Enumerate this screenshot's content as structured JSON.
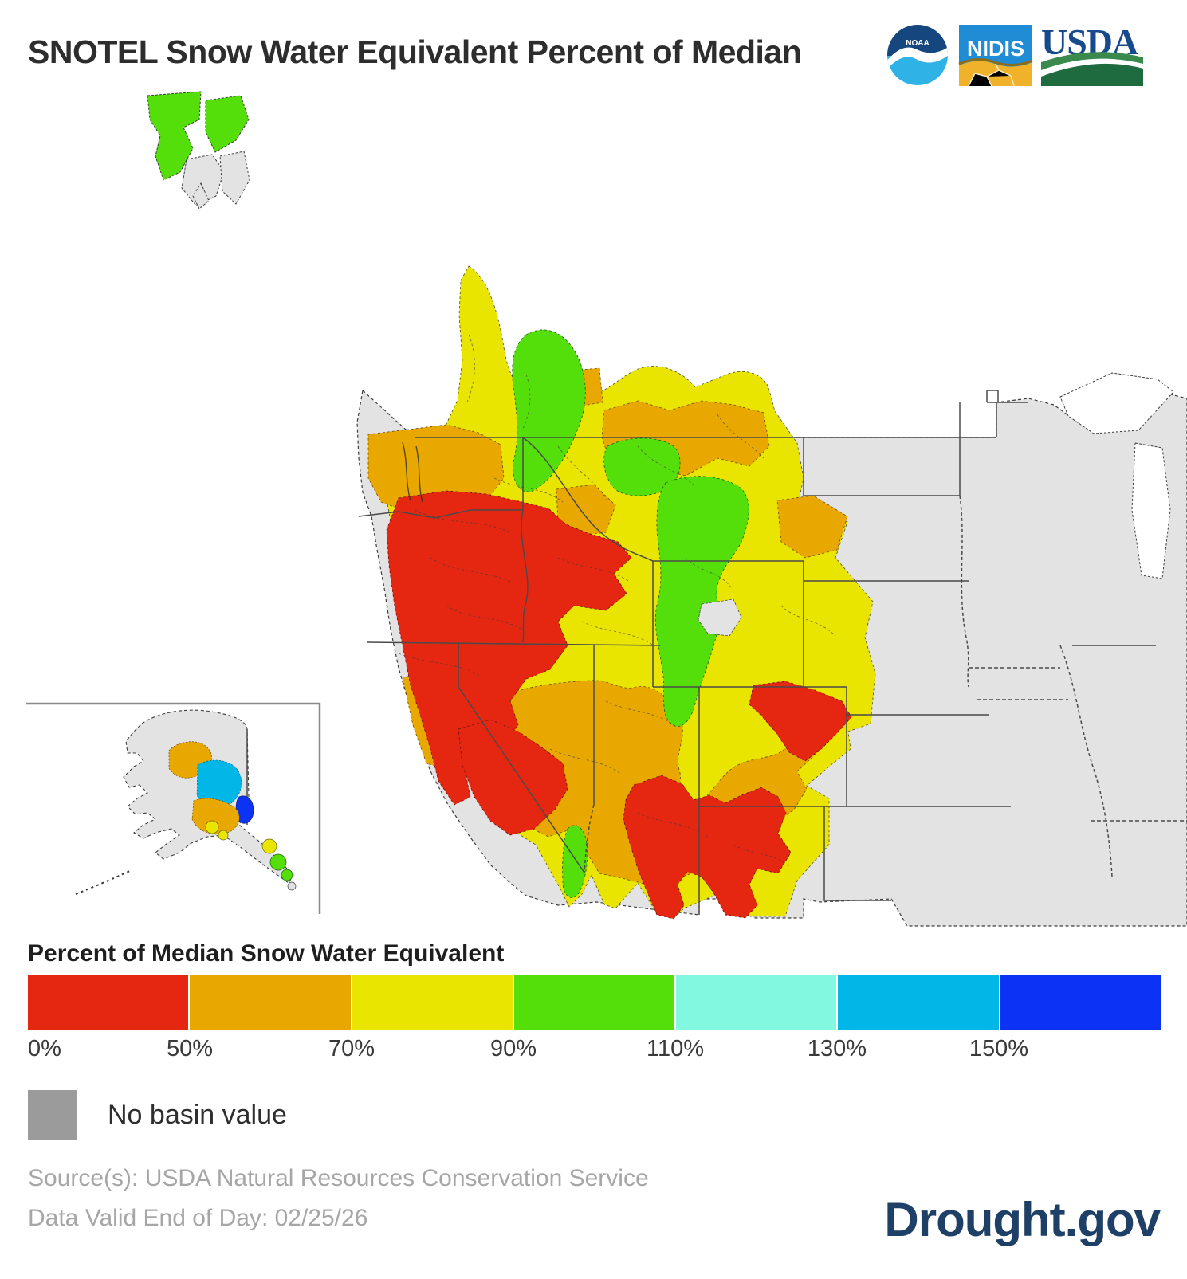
{
  "header": {
    "title": "SNOTEL Snow Water Equivalent Percent of Median",
    "logos": [
      {
        "name": "NOAA",
        "label": "NOAA"
      },
      {
        "name": "NIDIS",
        "label": "NIDIS"
      },
      {
        "name": "USDA",
        "label": "USDA"
      }
    ]
  },
  "map": {
    "description": "Choropleth of SNOTEL snow water equivalent percent of median by basin, western United States with southeast Alaska fragment and Alaska inset",
    "land_color": "#e3e3e3",
    "border_color": "#4a4a4a",
    "coast_color": "#3d3d3d"
  },
  "legend": {
    "title": "Percent of Median Snow Water Equivalent",
    "stops": [
      {
        "label": "0%",
        "color": "#e52711"
      },
      {
        "label": "50%",
        "color": "#e8a800"
      },
      {
        "label": "70%",
        "color": "#e9e500"
      },
      {
        "label": "90%",
        "color": "#54de0a"
      },
      {
        "label": "110%",
        "color": "#81f8df"
      },
      {
        "label": "130%",
        "color": "#00b7e8"
      },
      {
        "label": "150%",
        "color": "#0c33f4"
      }
    ],
    "no_basin": {
      "label": "No basin value",
      "color": "#9b9b9b"
    }
  },
  "footer": {
    "source_line": "Source(s): USDA Natural Resources Conservation Service",
    "valid_line": "Data Valid End of Day: 02/25/26",
    "brand": "Drought.gov",
    "brand_color": "#1e3f66"
  }
}
